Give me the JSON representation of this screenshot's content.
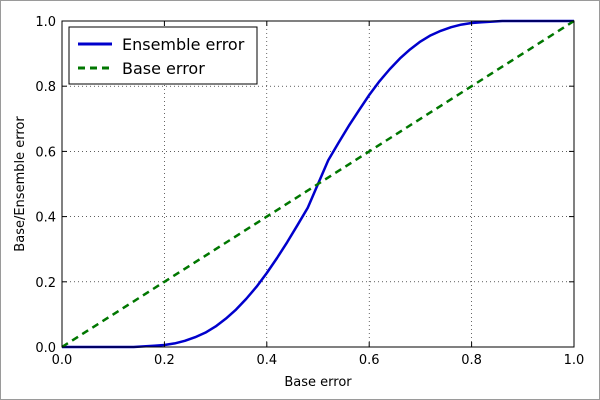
{
  "chart_data": {
    "type": "line",
    "title": "",
    "xlabel": "Base error",
    "ylabel": "Base/Ensemble error",
    "xlim": [
      0.0,
      1.0
    ],
    "ylim": [
      0.0,
      1.0
    ],
    "xticks": [
      "0.0",
      "0.2",
      "0.4",
      "0.6",
      "0.8",
      "1.0"
    ],
    "yticks": [
      "0.0",
      "0.2",
      "0.4",
      "0.6",
      "0.8",
      "1.0"
    ],
    "grid": true,
    "legend_position": "top-left",
    "series": [
      {
        "name": "Ensemble error",
        "style": "solid",
        "color": "#0000cc",
        "x": [
          0.0,
          0.02,
          0.04,
          0.06,
          0.08,
          0.1,
          0.12,
          0.14,
          0.16,
          0.18,
          0.2,
          0.22,
          0.24,
          0.26,
          0.28,
          0.3,
          0.32,
          0.34,
          0.36,
          0.38,
          0.4,
          0.42,
          0.44,
          0.46,
          0.48,
          0.5,
          0.52,
          0.54,
          0.56,
          0.58,
          0.6,
          0.62,
          0.64,
          0.66,
          0.68,
          0.7,
          0.72,
          0.74,
          0.76,
          0.78,
          0.8,
          0.82,
          0.84,
          0.86,
          0.88,
          0.9,
          0.92,
          0.94,
          0.96,
          0.98,
          1.0
        ],
        "y": [
          0.0,
          0.0,
          0.0,
          0.0,
          0.0,
          0.0,
          0.0,
          0.0,
          0.002,
          0.004,
          0.006,
          0.011,
          0.019,
          0.03,
          0.044,
          0.063,
          0.087,
          0.115,
          0.148,
          0.185,
          0.227,
          0.273,
          0.322,
          0.374,
          0.427,
          0.5,
          0.573,
          0.626,
          0.678,
          0.726,
          0.773,
          0.815,
          0.852,
          0.885,
          0.913,
          0.937,
          0.956,
          0.97,
          0.981,
          0.989,
          0.994,
          0.996,
          0.998,
          1.0,
          1.0,
          1.0,
          1.0,
          1.0,
          1.0,
          1.0,
          1.0
        ]
      },
      {
        "name": "Base error",
        "style": "dashed",
        "color": "#007700",
        "x": [
          0.0,
          1.0
        ],
        "y": [
          0.0,
          1.0
        ]
      }
    ]
  }
}
